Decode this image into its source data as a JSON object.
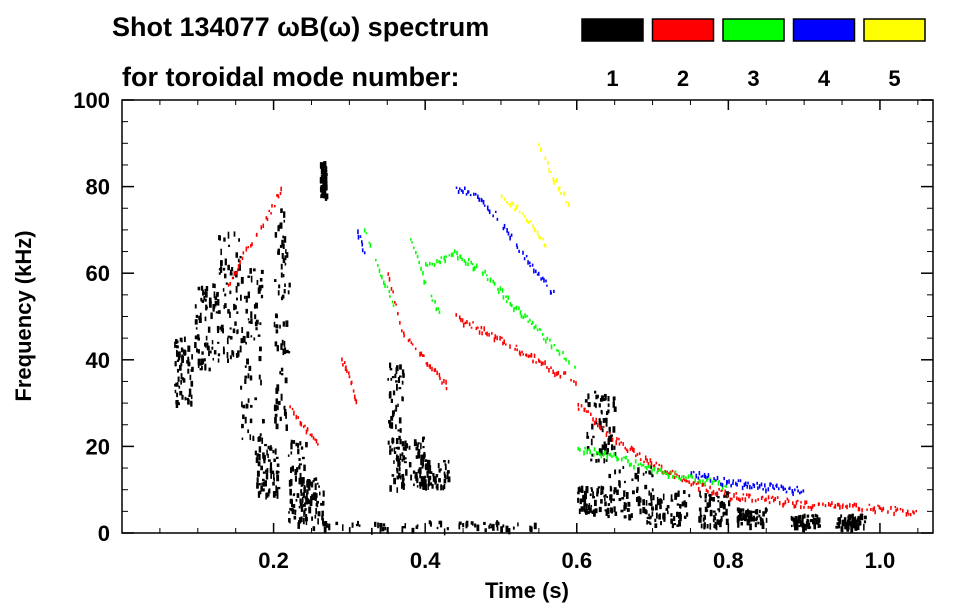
{
  "chart_data": {
    "type": "scatter",
    "title_line1": "Shot 134077 ωB(ω) spectrum",
    "title_line2": "for toroidal mode number:",
    "xlabel": "Time (s)",
    "ylabel": "Frequency (kHz)",
    "xlim": [
      0.0,
      1.07
    ],
    "ylim": [
      0,
      100
    ],
    "x_ticks": [
      0.2,
      0.4,
      0.6,
      0.8,
      1.0
    ],
    "x_tick_labels": [
      "0.2",
      "0.4",
      "0.6",
      "0.8",
      "1.0"
    ],
    "y_ticks": [
      0,
      20,
      40,
      60,
      80,
      100
    ],
    "y_tick_labels": [
      "0",
      "20",
      "40",
      "60",
      "80",
      "100"
    ],
    "legend_placement": "top-right",
    "legend": [
      {
        "label": "1",
        "color": "#000000"
      },
      {
        "label": "2",
        "color": "#ff0000"
      },
      {
        "label": "3",
        "color": "#00ff00"
      },
      {
        "label": "4",
        "color": "#0000ff"
      },
      {
        "label": "5",
        "color": "#ffff00"
      }
    ],
    "series": [
      {
        "mode": "1",
        "color": "#000000",
        "blobs": [
          {
            "x": 0.08,
            "y": 38,
            "dx": 0.012,
            "dy": 8
          },
          {
            "x": 0.11,
            "y": 48,
            "dx": 0.015,
            "dy": 10
          },
          {
            "x": 0.14,
            "y": 55,
            "dx": 0.015,
            "dy": 15
          },
          {
            "x": 0.17,
            "y": 42,
            "dx": 0.015,
            "dy": 20
          },
          {
            "x": 0.21,
            "y": 50,
            "dx": 0.01,
            "dy": 25
          },
          {
            "x": 0.23,
            "y": 12,
            "dx": 0.012,
            "dy": 10
          },
          {
            "x": 0.25,
            "y": 8,
            "dx": 0.015,
            "dy": 5
          },
          {
            "x": 0.265,
            "y": 82,
            "dx": 0.004,
            "dy": 4
          },
          {
            "x": 0.19,
            "y": 15,
            "dx": 0.015,
            "dy": 6
          },
          {
            "x": 0.36,
            "y": 25,
            "dx": 0.01,
            "dy": 15
          },
          {
            "x": 0.38,
            "y": 17,
            "dx": 0.02,
            "dy": 6
          },
          {
            "x": 0.41,
            "y": 14,
            "dx": 0.02,
            "dy": 3
          },
          {
            "x": 0.63,
            "y": 25,
            "dx": 0.02,
            "dy": 8
          },
          {
            "x": 0.62,
            "y": 8,
            "dx": 0.02,
            "dy": 3
          },
          {
            "x": 0.67,
            "y": 10,
            "dx": 0.03,
            "dy": 6
          },
          {
            "x": 0.72,
            "y": 6,
            "dx": 0.03,
            "dy": 4
          },
          {
            "x": 0.78,
            "y": 6,
            "dx": 0.02,
            "dy": 4
          },
          {
            "x": 0.83,
            "y": 4,
            "dx": 0.02,
            "dy": 2
          },
          {
            "x": 0.9,
            "y": 3,
            "dx": 0.02,
            "dy": 1.5
          },
          {
            "x": 0.96,
            "y": 3,
            "dx": 0.02,
            "dy": 1.5
          },
          {
            "x": 0.4,
            "y": 2,
            "dx": 0.15,
            "dy": 1
          }
        ]
      },
      {
        "mode": "2",
        "color": "#ff0000",
        "tracks": [
          [
            [
              0.14,
              58
            ],
            [
              0.16,
              65
            ],
            [
              0.18,
              70
            ],
            [
              0.2,
              76
            ],
            [
              0.21,
              80
            ]
          ],
          [
            [
              0.29,
              40
            ],
            [
              0.3,
              36
            ],
            [
              0.31,
              30
            ]
          ],
          [
            [
              0.35,
              60
            ],
            [
              0.37,
              46
            ],
            [
              0.4,
              40
            ],
            [
              0.43,
              34
            ]
          ],
          [
            [
              0.44,
              50
            ],
            [
              0.5,
              45
            ],
            [
              0.55,
              40
            ],
            [
              0.6,
              35
            ]
          ],
          [
            [
              0.6,
              30
            ],
            [
              0.65,
              22
            ],
            [
              0.7,
              16
            ],
            [
              0.75,
              12
            ],
            [
              0.8,
              9
            ],
            [
              0.9,
              7
            ],
            [
              1.0,
              6
            ],
            [
              1.05,
              5
            ]
          ],
          [
            [
              0.22,
              30
            ],
            [
              0.24,
              25
            ],
            [
              0.26,
              20
            ]
          ]
        ]
      },
      {
        "mode": "3",
        "color": "#00ff00",
        "tracks": [
          [
            [
              0.4,
              62
            ],
            [
              0.44,
              65
            ],
            [
              0.48,
              60
            ],
            [
              0.52,
              52
            ],
            [
              0.56,
              45
            ],
            [
              0.6,
              38
            ]
          ],
          [
            [
              0.32,
              70
            ],
            [
              0.34,
              60
            ],
            [
              0.36,
              52
            ]
          ],
          [
            [
              0.38,
              68
            ],
            [
              0.4,
              58
            ],
            [
              0.42,
              50
            ]
          ],
          [
            [
              0.6,
              20
            ],
            [
              0.65,
              18
            ],
            [
              0.7,
              15
            ],
            [
              0.75,
              13
            ],
            [
              0.8,
              11
            ]
          ]
        ]
      },
      {
        "mode": "4",
        "color": "#0000ff",
        "tracks": [
          [
            [
              0.44,
              80
            ],
            [
              0.47,
              78
            ],
            [
              0.5,
              72
            ],
            [
              0.53,
              64
            ],
            [
              0.57,
              55
            ]
          ],
          [
            [
              0.31,
              70
            ],
            [
              0.32,
              65
            ]
          ],
          [
            [
              0.75,
              14
            ],
            [
              0.8,
              12
            ],
            [
              0.9,
              10
            ]
          ]
        ]
      },
      {
        "mode": "5",
        "color": "#ffff00",
        "tracks": [
          [
            [
              0.5,
              78
            ],
            [
              0.53,
              74
            ],
            [
              0.56,
              66
            ]
          ],
          [
            [
              0.55,
              90
            ],
            [
              0.57,
              82
            ],
            [
              0.59,
              75
            ]
          ]
        ]
      }
    ]
  }
}
